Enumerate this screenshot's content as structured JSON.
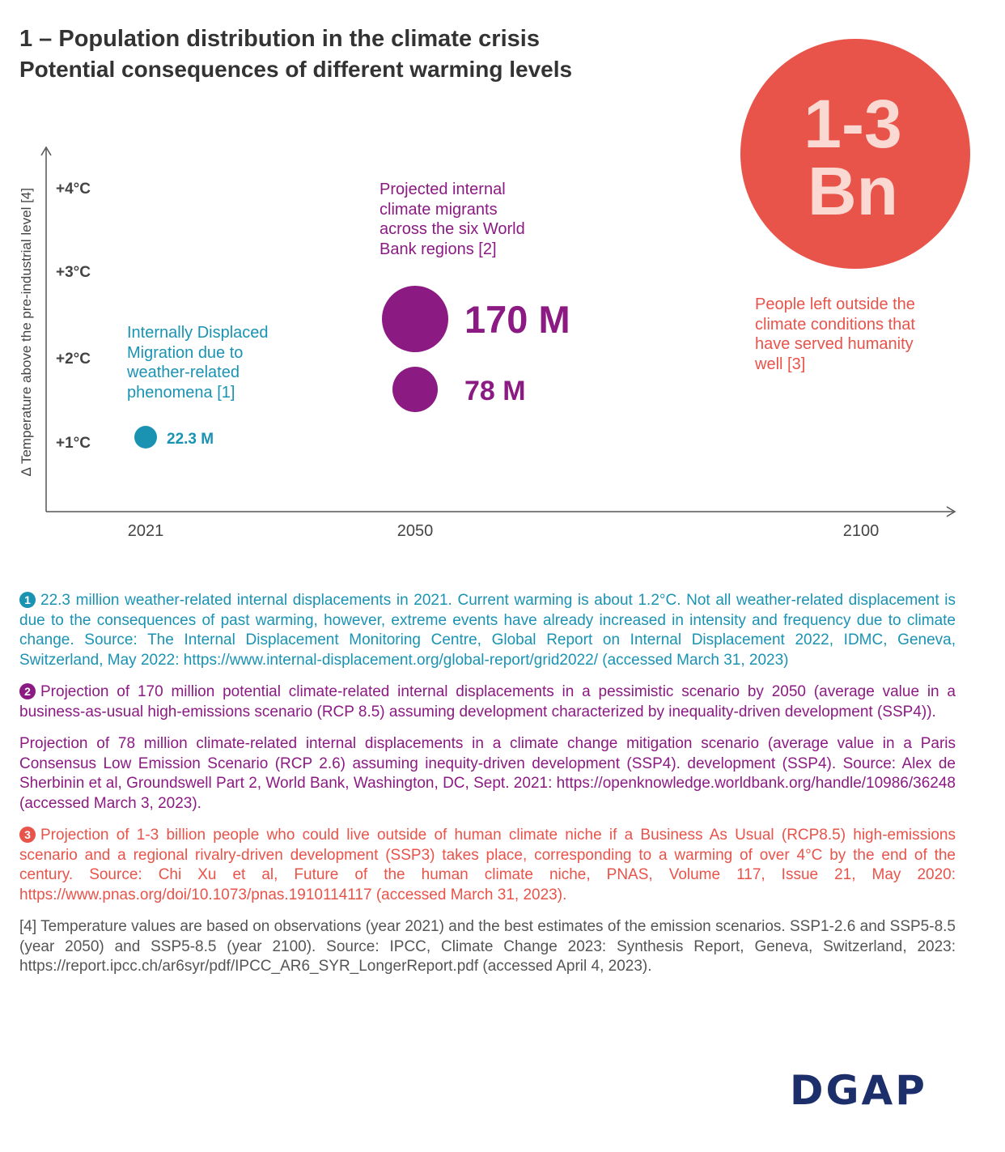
{
  "header": {
    "title": "1 – Population distribution in the climate crisis",
    "subtitle": "Potential consequences of different warming levels"
  },
  "colors": {
    "teal": "#1a93b3",
    "purple": "#8b1a83",
    "red": "#e8534a",
    "bn_text": "#fbd9d3",
    "axis": "#555555"
  },
  "chart_data": {
    "type": "scatter",
    "ylabel": "∆ Temperature above the pre-industrial level [4]",
    "xlabel": "",
    "y_ticks": [
      "+1°C",
      "+2°C",
      "+3°C",
      "+4°C"
    ],
    "x_ticks": [
      "2021",
      "2050",
      "2100"
    ],
    "series": [
      {
        "name": "Internally Displaced Migration due to weather-related phenomena [1]",
        "name_lines": [
          "Internally Displaced",
          "Migration due to",
          "weather-related",
          "phenomena [1]"
        ],
        "color": "#1a93b3",
        "points": [
          {
            "year": 2021,
            "temp": 1.2,
            "value_millions": 22.3,
            "label": "22.3 M"
          }
        ]
      },
      {
        "name": "Projected internal climate migrants across the six World Bank regions [2]",
        "name_lines": [
          "Projected internal",
          "climate migrants",
          "across the six World",
          "Bank regions [2]"
        ],
        "color": "#8b1a83",
        "points": [
          {
            "year": 2050,
            "temp": 2.6,
            "value_millions": 170,
            "label": "170 M"
          },
          {
            "year": 2050,
            "temp": 1.8,
            "value_millions": 78,
            "label": "78 M"
          }
        ]
      },
      {
        "name": "People left outside the climate conditions that have served humanity well [3]",
        "name_lines": [
          "People left outside the",
          "climate conditions that",
          "have served humanity",
          "well [3]"
        ],
        "color": "#e8534a",
        "points": [
          {
            "year": 2100,
            "temp": 4.0,
            "value_billions": "1-3",
            "label_lines": [
              "1-3",
              "Bn"
            ]
          }
        ]
      }
    ]
  },
  "notes": {
    "n1_badge": "1",
    "n1": "22.3 million weather-related internal displacements in 2021. Current warming is about 1.2°C. Not all weather-related displacement is due to the consequences of past warming, however, extreme events have already increased in intensity and frequency due to climate change. Source: The Internal Displacement Monitoring Centre, Global Report on Internal Displacement 2022, IDMC, Geneva, Switzerland, May 2022: https://www.internal-displacement.org/global-report/grid2022/ (accessed March 31, 2023)",
    "n2_badge": "2",
    "n2": "Projection of 170 million potential climate-related internal displacements in a pessimistic scenario by 2050 (average value in a business-as-usual high-emissions scenario (RCP 8.5) assuming development characterized by inequality-driven development (SSP4)).",
    "n2b": "Projection of 78 million climate-related internal displacements in a climate change mitigation scenario (average value in a Paris Consensus Low Emission Scenario (RCP 2.6) assuming inequity-driven development (SSP4). development (SSP4). Source: Alex de Sherbinin et al, Groundswell Part 2, World Bank, Washington, DC, Sept. 2021: https://openknowledge.worldbank.org/handle/10986/36248 (accessed March 3, 2023).",
    "n3_badge": "3",
    "n3": "Projection of 1-3 billion people who could live outside of human climate niche if a Business As Usual (RCP8.5) high-emissions scenario and a regional rivalry-driven development (SSP3) takes place, corresponding to a warming of over 4°C by the end of the century. Source: Chi Xu et al, Future of the human climate niche, PNAS, Volume 117, Issue 21, May 2020: https://www.pnas.org/doi/10.1073/pnas.1910114117 (accessed March 31, 2023).",
    "n4": "[4] Temperature values are based on observations (year 2021) and the best estimates of the emission scenarios. SSP1-2.6 and SSP5-8.5 (year 2050) and SSP5-8.5 (year 2100). Source: IPCC, Climate Change 2023: Synthesis Report, Geneva, Switzerland, 2023: https://report.ipcc.ch/ar6syr/pdf/IPCC_AR6_SYR_LongerReport.pdf (accessed April 4, 2023)."
  },
  "logo": "DGAP"
}
